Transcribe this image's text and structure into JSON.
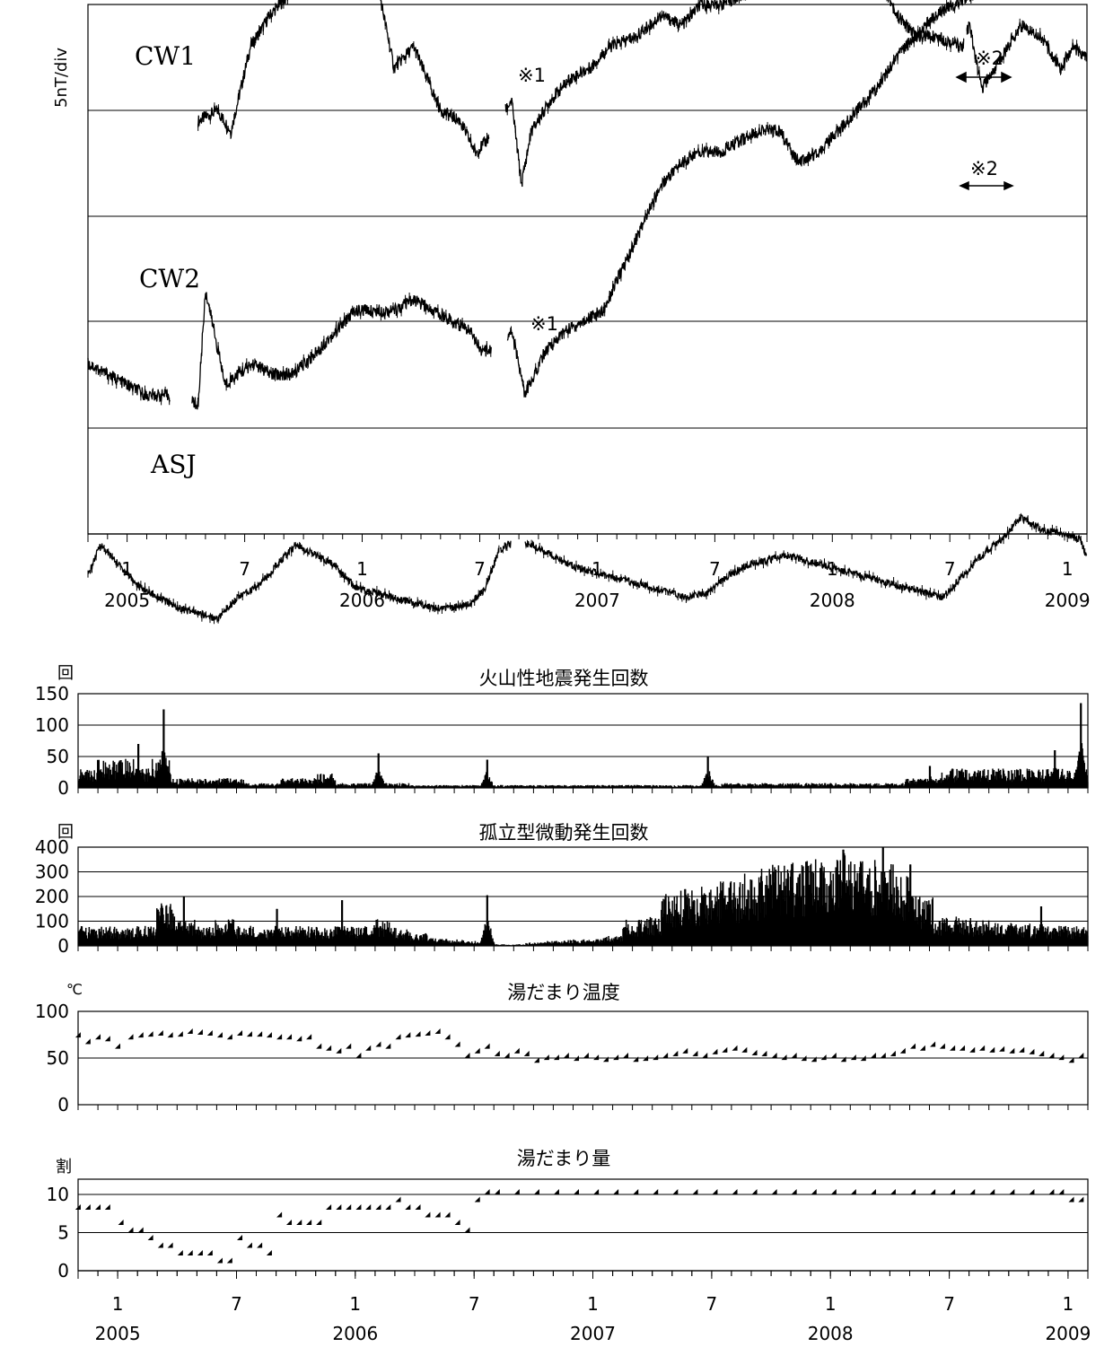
{
  "chart_data": [
    {
      "type": "line",
      "ylabel": "5nT/div",
      "series": [
        {
          "name": "CW1",
          "x": [
            "2005-04-20",
            "2005-05-20",
            "2005-06-10",
            "2005-07-10",
            "2005-08-10",
            "2005-09-10",
            "2005-10-20",
            "2005-11-20",
            "2005-12-20",
            "2006-01-15",
            "2006-02-20",
            "2006-03-20",
            "2006-05-01",
            "2006-06-01",
            "2006-06-25",
            "2006-07-10",
            "2006-08-01",
            "2006-08-20",
            "2006-09-05",
            "2006-09-20",
            "2006-10-20",
            "2006-11-20",
            "2006-12-20",
            "2007-01-20",
            "2007-03-01",
            "2007-04-10",
            "2007-05-10",
            "2007-06-10",
            "2007-07-10",
            "2007-08-20",
            "2007-09-20",
            "2007-10-20",
            "2007-11-20",
            "2007-12-20",
            "2008-01-10",
            "2008-02-10",
            "2008-03-10",
            "2008-04-10",
            "2008-05-10",
            "2008-06-10",
            "2008-07-20",
            "2008-07-25",
            "2008-08-01",
            "2008-08-20",
            "2008-09-20",
            "2008-10-20",
            "2008-11-20",
            "2008-12-20",
            "2009-01-10",
            "2009-01-31"
          ],
          "y": [
            -0.1,
            0.0,
            -0.2,
            0.6,
            0.9,
            1.1,
            1.3,
            1.4,
            1.6,
            1.5,
            0.4,
            0.6,
            0.0,
            -0.1,
            -0.4,
            -0.3,
            -0.1,
            0.1,
            -0.7,
            -0.2,
            0.1,
            0.3,
            0.4,
            0.6,
            0.7,
            0.9,
            0.8,
            1.0,
            1.0,
            1.1,
            1.2,
            1.3,
            1.1,
            1.3,
            1.3,
            1.4,
            1.3,
            0.9,
            0.7,
            0.7,
            0.6,
            0.7,
            0.8,
            0.2,
            0.5,
            0.8,
            0.7,
            0.4,
            0.6,
            0.5
          ]
        },
        {
          "name": "CW2",
          "x": [
            "2004-11-01",
            "2004-12-01",
            "2005-01-01",
            "2005-02-01",
            "2005-03-01",
            "2005-04-01",
            "2005-04-20",
            "2005-05-01",
            "2005-06-01",
            "2005-06-20",
            "2005-07-15",
            "2005-08-10",
            "2005-09-15",
            "2005-10-20",
            "2005-11-20",
            "2005-12-20",
            "2006-01-20",
            "2006-02-20",
            "2006-03-20",
            "2006-04-20",
            "2006-05-20",
            "2006-06-20",
            "2006-07-05",
            "2006-08-01",
            "2006-08-20",
            "2006-09-01",
            "2006-09-10",
            "2006-10-10",
            "2006-11-10",
            "2006-12-10",
            "2007-01-10",
            "2007-02-10",
            "2007-03-10",
            "2007-04-10",
            "2007-05-10",
            "2007-06-10",
            "2007-07-10",
            "2007-08-10",
            "2007-09-10",
            "2007-10-10",
            "2007-11-10",
            "2007-12-10",
            "2008-01-10",
            "2008-02-10",
            "2008-03-10",
            "2008-04-10",
            "2008-05-10",
            "2008-06-10",
            "2008-07-10",
            "2008-08-10",
            "2008-09-10",
            "2008-09-25",
            "2008-10-20",
            "2008-11-20",
            "2008-12-20",
            "2009-01-20",
            "2009-01-31"
          ],
          "y": [
            -0.4,
            -0.5,
            -0.6,
            -0.7,
            -0.7,
            -0.7,
            -0.8,
            0.3,
            -0.6,
            -0.5,
            -0.4,
            -0.5,
            -0.5,
            -0.3,
            -0.1,
            0.1,
            0.1,
            0.1,
            0.2,
            0.1,
            -0.0,
            -0.1,
            -0.3,
            -0.2,
            -0.1,
            -0.4,
            -0.7,
            -0.3,
            -0.1,
            0.0,
            0.1,
            0.5,
            0.9,
            1.3,
            1.5,
            1.6,
            1.6,
            1.7,
            1.8,
            1.8,
            1.5,
            1.6,
            1.8,
            2.0,
            2.2,
            2.5,
            2.7,
            2.9,
            3.0,
            3.1,
            3.2,
            3.3,
            3.2,
            3.1,
            3.7,
            3.7,
            3.6
          ]
        },
        {
          "name": "ASJ",
          "x": [
            "2004-11-01",
            "2004-11-20",
            "2004-12-20",
            "2005-01-20",
            "2005-02-20",
            "2005-03-20",
            "2005-04-20",
            "2005-05-20",
            "2005-06-20",
            "2005-07-20",
            "2005-08-20",
            "2005-09-20",
            "2005-10-20",
            "2005-11-20",
            "2005-12-20",
            "2006-01-20",
            "2006-02-20",
            "2006-03-20",
            "2006-04-20",
            "2006-05-20",
            "2006-06-20",
            "2006-07-10",
            "2006-08-01",
            "2006-08-15",
            "2006-09-20",
            "2006-10-20",
            "2006-11-20",
            "2006-12-20",
            "2007-01-20",
            "2007-02-20",
            "2007-03-20",
            "2007-04-20",
            "2007-05-20",
            "2007-06-20",
            "2007-07-20",
            "2007-08-20",
            "2007-09-20",
            "2007-10-20",
            "2007-11-20",
            "2007-12-20",
            "2008-01-20",
            "2008-02-20",
            "2008-03-20",
            "2008-04-20",
            "2008-05-20",
            "2008-06-20",
            "2008-07-20",
            "2008-08-20",
            "2008-09-20",
            "2008-10-20",
            "2008-11-20",
            "2008-12-20",
            "2009-01-20",
            "2009-01-31"
          ],
          "y": [
            -0.4,
            -0.1,
            -0.3,
            -0.5,
            -0.6,
            -0.7,
            -0.75,
            -0.8,
            -0.6,
            -0.5,
            -0.3,
            -0.1,
            -0.2,
            -0.3,
            -0.5,
            -0.55,
            -0.6,
            -0.65,
            -0.7,
            -0.7,
            -0.65,
            -0.5,
            -0.15,
            -0.1,
            -0.1,
            -0.2,
            -0.3,
            -0.35,
            -0.4,
            -0.45,
            -0.5,
            -0.55,
            -0.6,
            -0.55,
            -0.4,
            -0.3,
            -0.25,
            -0.2,
            -0.25,
            -0.3,
            -0.35,
            -0.4,
            -0.45,
            -0.5,
            -0.55,
            -0.6,
            -0.4,
            -0.2,
            -0.05,
            0.15,
            0.05,
            0.0,
            -0.05,
            -0.2
          ]
        }
      ],
      "annotations": [
        "※1",
        "※1",
        "※2",
        "※2"
      ],
      "x_ticks": [
        "1",
        "7",
        "1",
        "7",
        "1",
        "7",
        "1",
        "7",
        "1"
      ],
      "year_labels": [
        "2005",
        "2006",
        "2007",
        "2008",
        "2009"
      ]
    },
    {
      "type": "bar",
      "title": "火山性地震発生回数",
      "unit": "回",
      "yticks": [
        "150",
        "100",
        "50",
        "0"
      ],
      "ylim": [
        0,
        150
      ],
      "monthly_typical": [
        20,
        30,
        30,
        20,
        30,
        10,
        10,
        10,
        10,
        5,
        5,
        10,
        10,
        15,
        5,
        5,
        5,
        5,
        3,
        3,
        3,
        3,
        3,
        3,
        3,
        3,
        3,
        3,
        3,
        3,
        3,
        3,
        3,
        3,
        3,
        5,
        5,
        5,
        5,
        5,
        5,
        5,
        5,
        5,
        5,
        10,
        10,
        20,
        20,
        20,
        20,
        20,
        20,
        20,
        20
      ],
      "peaks": [
        {
          "date": "2005-03-10",
          "value": 125
        },
        {
          "date": "2005-02-01",
          "value": 70
        },
        {
          "date": "2006-02-05",
          "value": 55
        },
        {
          "date": "2006-07-20",
          "value": 45
        },
        {
          "date": "2007-06-25",
          "value": 50
        },
        {
          "date": "2008-06-01",
          "value": 35
        },
        {
          "date": "2008-12-10",
          "value": 60
        },
        {
          "date": "2009-01-20",
          "value": 135
        }
      ]
    },
    {
      "type": "bar",
      "title": "孤立型微動発生回数",
      "unit": "回",
      "yticks": [
        "400",
        "300",
        "200",
        "100",
        "0"
      ],
      "ylim": [
        0,
        400
      ],
      "monthly_typical": [
        60,
        60,
        55,
        60,
        130,
        80,
        60,
        80,
        60,
        50,
        60,
        60,
        60,
        60,
        60,
        80,
        55,
        40,
        25,
        20,
        15,
        5,
        5,
        10,
        15,
        20,
        20,
        30,
        80,
        90,
        160,
        170,
        180,
        200,
        220,
        250,
        250,
        260,
        250,
        280,
        260,
        250,
        210,
        150,
        90,
        90,
        80,
        70,
        70,
        60,
        60,
        60
      ],
      "peaks": [
        {
          "date": "2005-04-10",
          "value": 200
        },
        {
          "date": "2005-09-01",
          "value": 150
        },
        {
          "date": "2005-12-10",
          "value": 185
        },
        {
          "date": "2006-07-20",
          "value": 205
        },
        {
          "date": "2007-04-20",
          "value": 200
        },
        {
          "date": "2007-05-20",
          "value": 230
        },
        {
          "date": "2008-01-20",
          "value": 390
        },
        {
          "date": "2008-03-20",
          "value": 420
        },
        {
          "date": "2008-05-01",
          "value": 330
        },
        {
          "date": "2008-11-20",
          "value": 160
        }
      ]
    },
    {
      "type": "scatter",
      "title": "湯だまり温度",
      "unit": "℃",
      "yticks": [
        "100",
        "50",
        "0"
      ],
      "ylim": [
        0,
        100
      ],
      "x": [
        "2004-11-05",
        "2004-11-20",
        "2004-12-05",
        "2004-12-20",
        "2005-01-05",
        "2005-01-25",
        "2005-02-10",
        "2005-02-25",
        "2005-03-10",
        "2005-03-25",
        "2005-04-10",
        "2005-04-25",
        "2005-05-10",
        "2005-05-25",
        "2005-06-10",
        "2005-06-25",
        "2005-07-10",
        "2005-07-25",
        "2005-08-10",
        "2005-08-25",
        "2005-09-10",
        "2005-09-25",
        "2005-10-10",
        "2005-10-25",
        "2005-11-10",
        "2005-11-25",
        "2005-12-10",
        "2005-12-25",
        "2006-01-10",
        "2006-01-25",
        "2006-02-10",
        "2006-02-25",
        "2006-03-10",
        "2006-03-25",
        "2006-04-10",
        "2006-04-25",
        "2006-05-10",
        "2006-05-25",
        "2006-06-10",
        "2006-06-25",
        "2006-07-10",
        "2006-07-25",
        "2006-08-10",
        "2006-08-25",
        "2006-09-10",
        "2006-09-25",
        "2006-10-10",
        "2006-10-25",
        "2006-11-10",
        "2006-11-25",
        "2006-12-10",
        "2006-12-25",
        "2007-01-10",
        "2007-01-25",
        "2007-02-10",
        "2007-02-25",
        "2007-03-10",
        "2007-03-25",
        "2007-04-10",
        "2007-04-25",
        "2007-05-10",
        "2007-05-25",
        "2007-06-10",
        "2007-06-25",
        "2007-07-10",
        "2007-07-25",
        "2007-08-10",
        "2007-08-25",
        "2007-09-10",
        "2007-09-25",
        "2007-10-10",
        "2007-10-25",
        "2007-11-10",
        "2007-11-25",
        "2007-12-10",
        "2007-12-25",
        "2008-01-10",
        "2008-01-25",
        "2008-02-10",
        "2008-02-25",
        "2008-03-10",
        "2008-03-25",
        "2008-04-10",
        "2008-04-25",
        "2008-05-10",
        "2008-05-25",
        "2008-06-10",
        "2008-06-25",
        "2008-07-10",
        "2008-07-25",
        "2008-08-10",
        "2008-08-25",
        "2008-09-10",
        "2008-09-25",
        "2008-10-10",
        "2008-10-25",
        "2008-11-10",
        "2008-11-25",
        "2008-12-10",
        "2008-12-25",
        "2009-01-10",
        "2009-01-25"
      ],
      "y": [
        72,
        65,
        70,
        68,
        60,
        70,
        72,
        73,
        74,
        72,
        73,
        76,
        75,
        74,
        72,
        70,
        74,
        73,
        73,
        72,
        70,
        70,
        68,
        70,
        60,
        58,
        55,
        60,
        50,
        58,
        62,
        60,
        70,
        72,
        73,
        74,
        76,
        70,
        62,
        50,
        55,
        60,
        52,
        50,
        55,
        52,
        45,
        48,
        48,
        50,
        47,
        50,
        48,
        46,
        48,
        50,
        46,
        47,
        48,
        50,
        52,
        55,
        52,
        50,
        54,
        56,
        58,
        56,
        53,
        52,
        50,
        48,
        50,
        47,
        46,
        48,
        50,
        46,
        48,
        47,
        50,
        50,
        52,
        55,
        60,
        58,
        62,
        60,
        58,
        58,
        56,
        58,
        56,
        57,
        55,
        56,
        54,
        52,
        50,
        48,
        45,
        50
      ]
    },
    {
      "type": "scatter",
      "title": "湯だまり量",
      "unit": "割",
      "yticks": [
        "10",
        "5",
        "0"
      ],
      "ylim": [
        0,
        12
      ],
      "x": [
        "2004-11-05",
        "2004-11-20",
        "2004-12-05",
        "2004-12-20",
        "2005-01-10",
        "2005-01-25",
        "2005-02-10",
        "2005-02-25",
        "2005-03-10",
        "2005-03-25",
        "2005-04-10",
        "2005-04-25",
        "2005-05-10",
        "2005-05-25",
        "2005-06-10",
        "2005-06-25",
        "2005-07-10",
        "2005-07-25",
        "2005-08-10",
        "2005-08-25",
        "2005-09-10",
        "2005-09-25",
        "2005-10-10",
        "2005-10-25",
        "2005-11-10",
        "2005-11-25",
        "2005-12-10",
        "2005-12-25",
        "2006-01-10",
        "2006-01-25",
        "2006-02-10",
        "2006-02-25",
        "2006-03-10",
        "2006-03-25",
        "2006-04-10",
        "2006-04-25",
        "2006-05-10",
        "2006-05-25",
        "2006-06-10",
        "2006-06-25",
        "2006-07-10",
        "2006-07-25",
        "2006-08-10",
        "2006-09-10",
        "2006-10-10",
        "2006-11-10",
        "2006-12-10",
        "2007-01-10",
        "2007-02-10",
        "2007-03-10",
        "2007-04-10",
        "2007-05-10",
        "2007-06-10",
        "2007-07-10",
        "2007-08-10",
        "2007-09-10",
        "2007-10-10",
        "2007-11-10",
        "2007-12-10",
        "2008-01-10",
        "2008-02-10",
        "2008-03-10",
        "2008-04-10",
        "2008-05-10",
        "2008-06-10",
        "2008-07-10",
        "2008-08-10",
        "2008-09-10",
        "2008-10-10",
        "2008-11-10",
        "2008-12-10",
        "2008-12-25",
        "2009-01-10",
        "2009-01-25"
      ],
      "y": [
        8,
        8,
        8,
        8,
        6,
        5,
        5,
        4,
        3,
        3,
        2,
        2,
        2,
        2,
        1,
        1,
        4,
        3,
        3,
        2,
        7,
        6,
        6,
        6,
        6,
        8,
        8,
        8,
        8,
        8,
        8,
        8,
        9,
        8,
        8,
        7,
        7,
        7,
        6,
        5,
        9,
        10,
        10,
        10,
        10,
        10,
        10,
        10,
        10,
        10,
        10,
        10,
        10,
        10,
        10,
        10,
        10,
        10,
        10,
        10,
        10,
        10,
        10,
        10,
        10,
        10,
        10,
        10,
        10,
        10,
        10,
        10,
        9,
        9
      ]
    }
  ],
  "lower_x_ticks": [
    "1",
    "7",
    "1",
    "7",
    "1",
    "7",
    "1",
    "7",
    "1"
  ],
  "lower_year_labels": [
    "2005",
    "2006",
    "2007",
    "2008",
    "2009"
  ]
}
